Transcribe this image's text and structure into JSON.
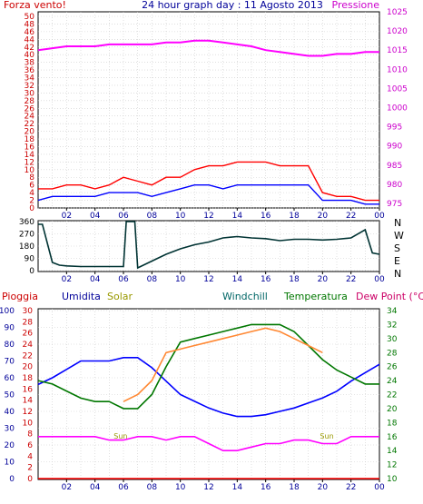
{
  "header": {
    "left": "Forza vento!",
    "center": "24 hour graph day : 11 Agosto 2013",
    "right": "Pressione"
  },
  "x_ticks": [
    "02",
    "04",
    "06",
    "08",
    "10",
    "12",
    "14",
    "16",
    "18",
    "20",
    "22",
    "00"
  ],
  "colors": {
    "red": "#ff0000",
    "blue": "#0000ff",
    "magenta": "#ff00ff",
    "dark_red": "#cc0000",
    "navy": "#000099",
    "olive": "#999900",
    "teal": "#006666",
    "green": "#007700",
    "dark_green": "#003333",
    "pink": "#cc0066",
    "orange": "#ff8833",
    "grid": "#cccccc"
  },
  "chart_data": [
    {
      "type": "line",
      "panel": "wind_pressure",
      "left_axis": {
        "ticks": [
          "0",
          "2",
          "4",
          "6",
          "8",
          "10",
          "12",
          "14",
          "16",
          "18",
          "20",
          "22",
          "24",
          "26",
          "28",
          "30",
          "32",
          "34",
          "36",
          "38",
          "40",
          "42",
          "44",
          "46",
          "48",
          "50"
        ],
        "ylim": [
          0,
          50
        ]
      },
      "right_axis": {
        "label": "Pressione",
        "ticks": [
          "975",
          "980",
          "985",
          "990",
          "995",
          "1000",
          "1005",
          "1010",
          "1015",
          "1020",
          "1025"
        ],
        "ylim": [
          975,
          1025
        ]
      },
      "x": [
        0,
        1,
        2,
        3,
        4,
        5,
        6,
        7,
        8,
        9,
        10,
        11,
        12,
        13,
        14,
        15,
        16,
        17,
        18,
        19,
        20,
        21,
        22,
        23,
        24
      ],
      "series": [
        {
          "color": "#ff00ff",
          "axis": "right",
          "values": [
            1015,
            1015.5,
            1016,
            1016,
            1016,
            1016.5,
            1016.5,
            1016.5,
            1016.5,
            1017,
            1017,
            1017.5,
            1017.5,
            1017,
            1016.5,
            1016,
            1015,
            1014.5,
            1014,
            1013.5,
            1013.5,
            1014,
            1014,
            1014.5,
            1014.5
          ]
        },
        {
          "color": "#ff0000",
          "axis": "left",
          "values": [
            5,
            5,
            6,
            6,
            5,
            6,
            8,
            7,
            6,
            8,
            8,
            10,
            11,
            11,
            12,
            12,
            12,
            11,
            11,
            11,
            4,
            3,
            3,
            2,
            2
          ]
        },
        {
          "color": "#0000ff",
          "axis": "left",
          "values": [
            2,
            3,
            3,
            3,
            3,
            4,
            4,
            4,
            3,
            4,
            5,
            6,
            6,
            5,
            6,
            6,
            6,
            6,
            6,
            6,
            2,
            2,
            2,
            1,
            1
          ]
        }
      ]
    },
    {
      "type": "line",
      "panel": "wind_direction",
      "left_axis": {
        "ticks": [
          "0",
          "90",
          "180",
          "270",
          "360"
        ],
        "ylim": [
          0,
          360
        ]
      },
      "right_axis": {
        "ticks": [
          "N",
          "W",
          "S",
          "E",
          "N"
        ]
      },
      "x": [
        0,
        0.3,
        1,
        1.5,
        2,
        3,
        4,
        5,
        6,
        6.2,
        6.8,
        7,
        8,
        9,
        10,
        11,
        12,
        13,
        14,
        15,
        16,
        17,
        18,
        19,
        20,
        21,
        22,
        23,
        23.5,
        24
      ],
      "series": [
        {
          "color": "#003333",
          "values": [
            340,
            340,
            60,
            40,
            35,
            30,
            30,
            30,
            30,
            360,
            360,
            20,
            70,
            120,
            160,
            190,
            210,
            240,
            250,
            240,
            235,
            220,
            230,
            230,
            225,
            230,
            240,
            300,
            130,
            120
          ]
        }
      ]
    },
    {
      "type": "line",
      "panel": "humidity_temperature",
      "labels": [
        "Pioggia",
        "Umidita",
        "Solar",
        "Windchill",
        "Temperatura",
        "Dew Point (°C)"
      ],
      "axes": {
        "umidita_ticks": [
          "0",
          "10",
          "20",
          "30",
          "40",
          "50",
          "60",
          "70",
          "80",
          "90",
          "100"
        ],
        "pioggia_ticks": [
          "0",
          "2",
          "4",
          "6",
          "8",
          "10",
          "12",
          "14",
          "16",
          "18",
          "20",
          "22",
          "24",
          "26",
          "28",
          "30"
        ],
        "temp_ticks": [
          "10",
          "12",
          "14",
          "16",
          "18",
          "20",
          "22",
          "24",
          "26",
          "28",
          "30",
          "32",
          "34"
        ],
        "solar_ticks": [
          "Sun",
          "Sun"
        ]
      },
      "x": [
        0,
        1,
        2,
        3,
        4,
        5,
        6,
        7,
        8,
        9,
        10,
        11,
        12,
        13,
        14,
        15,
        16,
        17,
        18,
        19,
        20,
        21,
        22,
        23,
        24
      ],
      "series": [
        {
          "name": "Umidita",
          "color": "#0000ff",
          "values": [
            56,
            60,
            65,
            70,
            70,
            70,
            72,
            72,
            66,
            58,
            50,
            46,
            42,
            39,
            37,
            37,
            38,
            40,
            42,
            45,
            48,
            52,
            58,
            63,
            68
          ]
        },
        {
          "name": "Temperatura",
          "color": "#007700",
          "values": [
            24,
            23.5,
            22.5,
            21.5,
            21,
            21,
            20,
            20,
            22,
            26,
            29.5,
            30,
            30.5,
            31,
            31.5,
            32,
            32,
            32,
            31,
            29,
            27,
            25.5,
            24.5,
            23.5,
            23.5
          ]
        },
        {
          "name": "Windchill",
          "color": "#ff8833",
          "values": [
            null,
            null,
            null,
            null,
            null,
            null,
            21,
            22,
            24,
            28,
            28.5,
            29,
            29.5,
            30,
            30.5,
            31,
            31.5,
            31,
            30,
            29,
            28,
            null,
            null,
            null,
            null
          ]
        },
        {
          "name": "Dew Point (°C)",
          "color": "#ff00ff",
          "values": [
            16,
            16,
            16,
            16,
            16,
            15.5,
            15.5,
            16,
            16,
            15.5,
            16,
            16,
            15,
            14,
            14,
            14.5,
            15,
            15,
            15.5,
            15.5,
            15,
            15,
            16,
            16,
            16
          ]
        },
        {
          "name": "Pioggia",
          "color": "#ff0000",
          "values": [
            0,
            0,
            0,
            0,
            0,
            0,
            0,
            0,
            0,
            0,
            0,
            0,
            0,
            0,
            0,
            0,
            0,
            0,
            0,
            0,
            0,
            0,
            0,
            0,
            0
          ]
        }
      ]
    }
  ]
}
